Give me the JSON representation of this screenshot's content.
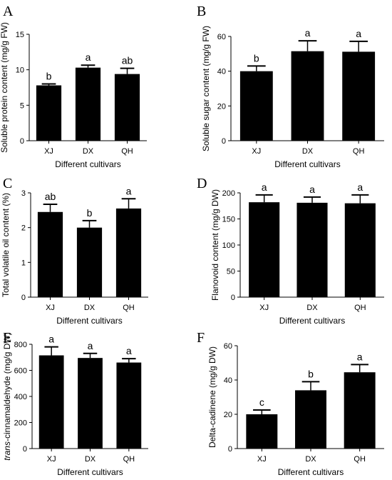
{
  "chart_data": [
    {
      "panel": "A",
      "type": "bar",
      "categories": [
        "XJ",
        "DX",
        "QH"
      ],
      "values": [
        7.8,
        10.3,
        9.4
      ],
      "errors": [
        0.2,
        0.35,
        0.8
      ],
      "significance": [
        "b",
        "a",
        "ab"
      ],
      "xlabel": "Different cultivars",
      "ylabel": "Soluble protein content (mg/g FW)",
      "ylim": [
        0,
        15
      ],
      "yticks": [
        0,
        5,
        10,
        15
      ],
      "color": "#000000"
    },
    {
      "panel": "B",
      "type": "bar",
      "categories": [
        "XJ",
        "DX",
        "QH"
      ],
      "values": [
        40,
        51.5,
        51.2
      ],
      "errors": [
        3,
        6,
        6
      ],
      "significance": [
        "b",
        "a",
        "a"
      ],
      "xlabel": "Different cultivars",
      "ylabel": "Soluble sugar content (mg/g FW)",
      "ylim": [
        0,
        60
      ],
      "yticks": [
        0,
        20,
        40,
        60
      ],
      "color": "#000000"
    },
    {
      "panel": "C",
      "type": "bar",
      "categories": [
        "XJ",
        "DX",
        "QH"
      ],
      "values": [
        2.45,
        2.0,
        2.55
      ],
      "errors": [
        0.22,
        0.2,
        0.28
      ],
      "significance": [
        "ab",
        "b",
        "a"
      ],
      "xlabel": "Different cultivars",
      "ylabel": "Total volatile oil content (%)",
      "ylim": [
        0,
        3
      ],
      "yticks": [
        0,
        1,
        2,
        3
      ],
      "color": "#000000"
    },
    {
      "panel": "D",
      "type": "bar",
      "categories": [
        "XJ",
        "DX",
        "QH"
      ],
      "values": [
        182,
        181,
        180
      ],
      "errors": [
        14,
        11,
        16
      ],
      "significance": [
        "a",
        "a",
        "a"
      ],
      "xlabel": "Different cultivars",
      "ylabel": "Flanovoid content (mg/g DW)",
      "ylim": [
        0,
        200
      ],
      "yticks": [
        0,
        50,
        100,
        150,
        200
      ],
      "color": "#000000"
    },
    {
      "panel": "E",
      "type": "bar",
      "categories": [
        "XJ",
        "DX",
        "QH"
      ],
      "values": [
        715,
        695,
        660
      ],
      "errors": [
        65,
        35,
        30
      ],
      "significance": [
        "a",
        "a",
        "a"
      ],
      "xlabel": "Different cultivars",
      "ylabel_italic": "trans",
      "ylabel": "-cinnamaldehyde (mg/g DW)",
      "ylim": [
        0,
        800
      ],
      "yticks": [
        0,
        200,
        400,
        600,
        800
      ],
      "color": "#000000"
    },
    {
      "panel": "F",
      "type": "bar",
      "categories": [
        "XJ",
        "DX",
        "QH"
      ],
      "values": [
        20,
        34,
        44.5
      ],
      "errors": [
        2.5,
        5,
        4.5
      ],
      "significance": [
        "c",
        "b",
        "a"
      ],
      "xlabel": "Different cultivars",
      "ylabel": "Delta-cadinene (mg/g DW)",
      "ylim": [
        0,
        60
      ],
      "yticks": [
        0,
        20,
        40,
        60
      ],
      "color": "#000000"
    }
  ]
}
